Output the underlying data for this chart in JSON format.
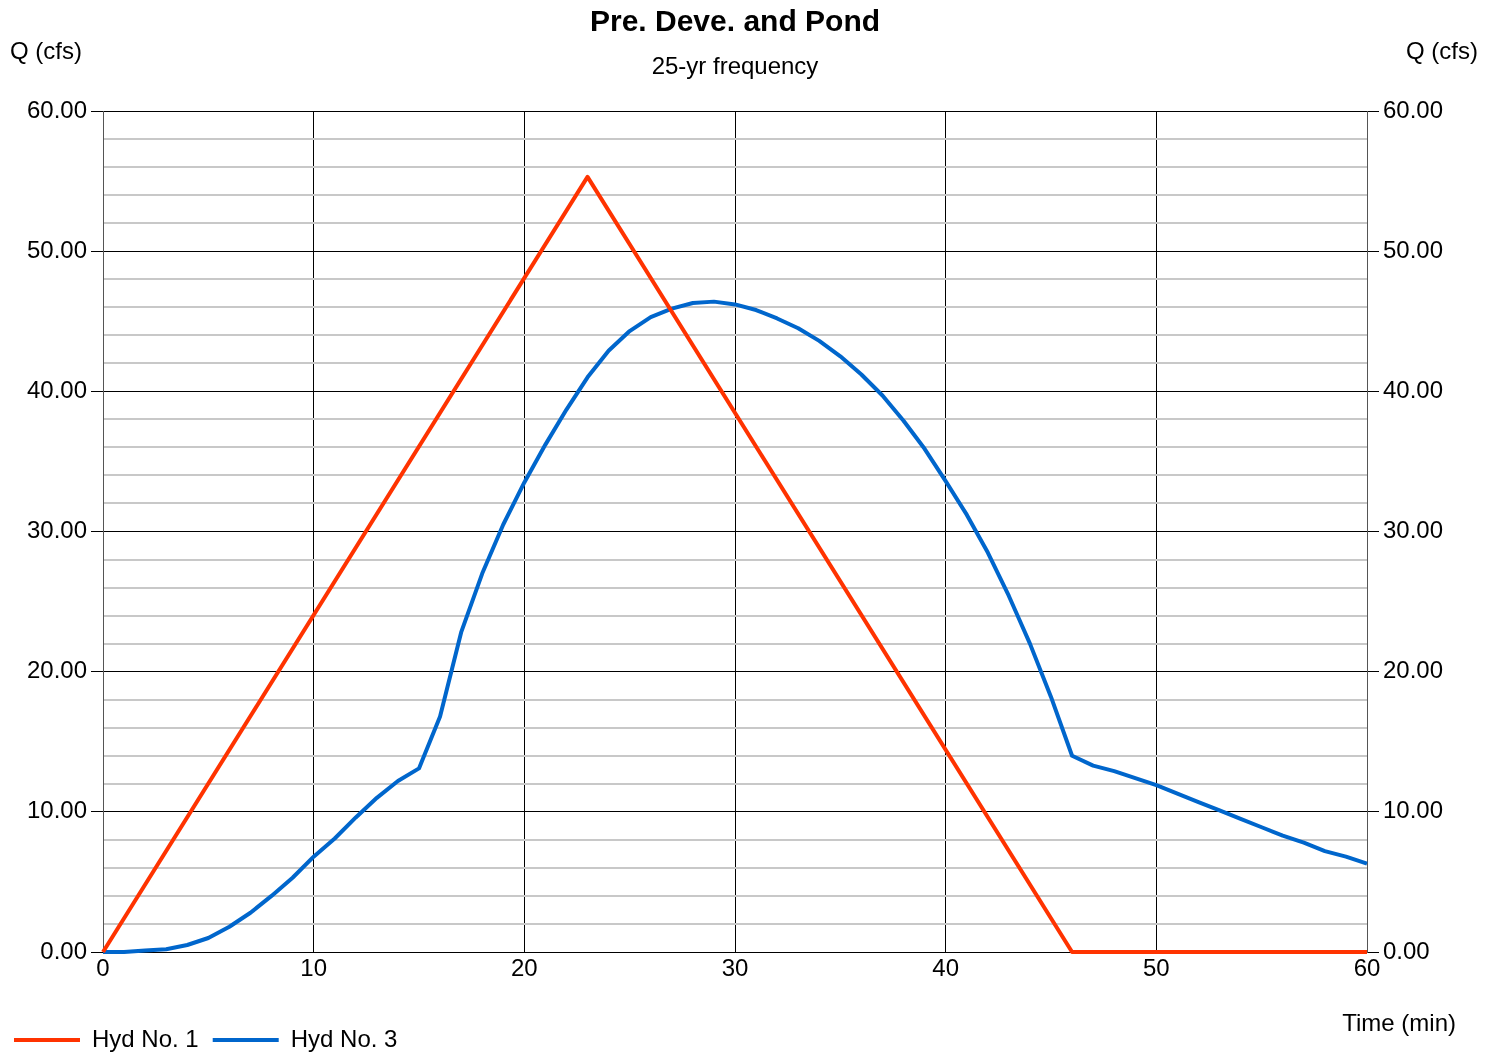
{
  "chart_data": {
    "type": "line",
    "title": "Pre. Deve. and Pond",
    "subtitle": "25-yr frequency",
    "xlabel": "Time (min)",
    "ylabel": "Q (cfs)",
    "y2label": "Q (cfs)",
    "xlim": [
      0,
      60
    ],
    "xticks": [
      0,
      10,
      20,
      30,
      40,
      50,
      60
    ],
    "ylim": [
      0,
      60
    ],
    "yticks": [
      {
        "value": 0,
        "label": "0.00"
      },
      {
        "value": 2,
        "label": null
      },
      {
        "value": 4,
        "label": null
      },
      {
        "value": 6,
        "label": null
      },
      {
        "value": 8,
        "label": null
      },
      {
        "value": 10,
        "label": "10.00"
      },
      {
        "value": 12,
        "label": null
      },
      {
        "value": 14,
        "label": null
      },
      {
        "value": 16,
        "label": null
      },
      {
        "value": 18,
        "label": null
      },
      {
        "value": 20,
        "label": "20.00"
      },
      {
        "value": 22,
        "label": null
      },
      {
        "value": 24,
        "label": null
      },
      {
        "value": 26,
        "label": null
      },
      {
        "value": 28,
        "label": null
      },
      {
        "value": 30,
        "label": "30.00"
      },
      {
        "value": 32,
        "label": null
      },
      {
        "value": 34,
        "label": null
      },
      {
        "value": 36,
        "label": null
      },
      {
        "value": 38,
        "label": null
      },
      {
        "value": 40,
        "label": "40.00"
      },
      {
        "value": 42,
        "label": null
      },
      {
        "value": 44,
        "label": null
      },
      {
        "value": 46,
        "label": null
      },
      {
        "value": 48,
        "label": null
      },
      {
        "value": 50,
        "label": "50.00"
      },
      {
        "value": 52,
        "label": null
      },
      {
        "value": 54,
        "label": null
      },
      {
        "value": 56,
        "label": null
      },
      {
        "value": 58,
        "label": null
      },
      {
        "value": 60,
        "label": "60.00"
      }
    ],
    "y2lim": [
      0,
      60
    ],
    "y2ticks": [
      {
        "value": 0,
        "label": "0.00"
      },
      {
        "value": 10,
        "label": "10.00"
      },
      {
        "value": 20,
        "label": "20.00"
      },
      {
        "value": 30,
        "label": "30.00"
      },
      {
        "value": 40,
        "label": "40.00"
      },
      {
        "value": 50,
        "label": "50.00"
      },
      {
        "value": 60,
        "label": "60.00"
      }
    ],
    "grid": true,
    "legend": "bottom left",
    "marker": "none",
    "line_style": "solid",
    "series": [
      {
        "name": "Hyd No. 1",
        "color": "#ff3300",
        "x": [
          0,
          23,
          46,
          60
        ],
        "values": [
          0,
          55.3,
          0,
          0
        ]
      },
      {
        "name": "Hyd No. 3",
        "color": "#0066cc",
        "x": [
          0,
          1,
          2,
          3,
          4,
          5,
          6,
          7,
          8,
          9,
          10,
          11,
          12,
          13,
          14,
          15,
          16,
          17,
          18,
          19,
          20,
          21,
          22,
          23,
          24,
          25,
          26,
          27,
          28,
          29,
          30,
          31,
          32,
          33,
          34,
          35,
          36,
          37,
          38,
          39,
          40,
          41,
          42,
          43,
          44,
          45,
          46,
          47,
          48,
          49,
          50,
          51,
          52,
          53,
          54,
          55,
          56,
          57,
          58,
          59,
          60
        ],
        "values": [
          0,
          0,
          0.1,
          0.2,
          0.5,
          1.0,
          1.8,
          2.8,
          4.0,
          5.3,
          6.8,
          8.1,
          9.6,
          11.0,
          12.2,
          13.1,
          16.8,
          22.8,
          27.0,
          30.5,
          33.5,
          36.2,
          38.7,
          41.0,
          42.9,
          44.3,
          45.3,
          45.9,
          46.3,
          46.4,
          46.2,
          45.8,
          45.2,
          44.5,
          43.6,
          42.5,
          41.2,
          39.7,
          37.9,
          35.9,
          33.6,
          31.2,
          28.5,
          25.4,
          22.0,
          18.2,
          14.0,
          13.3,
          12.9,
          12.4,
          11.9,
          11.3,
          10.7,
          10.1,
          9.5,
          8.9,
          8.3,
          7.8,
          7.2,
          6.8,
          6.3
        ]
      }
    ]
  }
}
